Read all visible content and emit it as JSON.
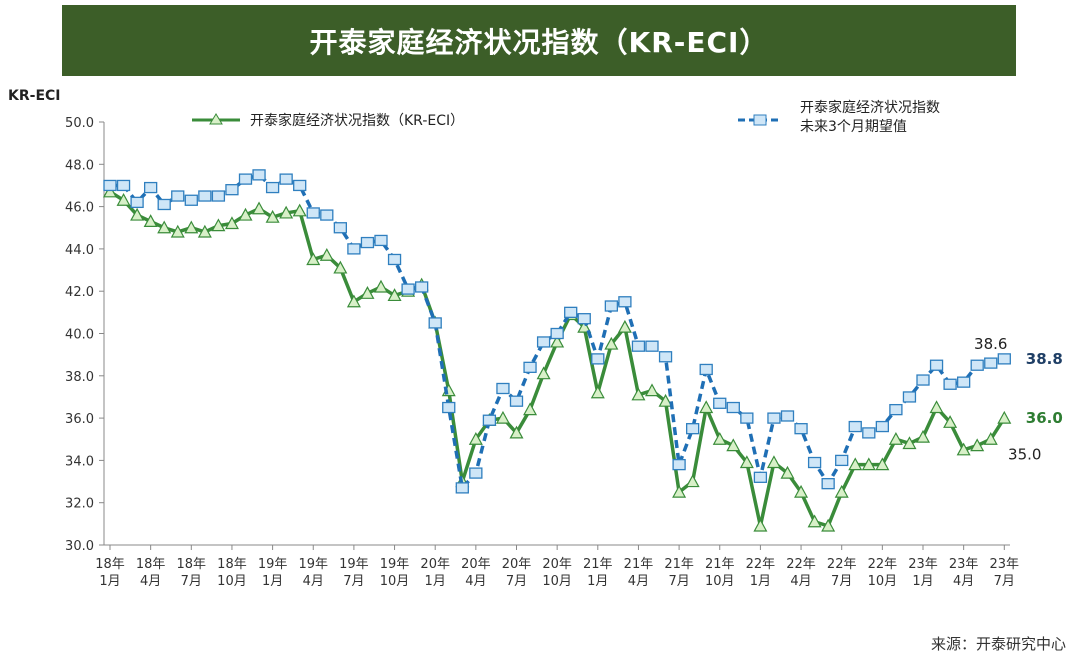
{
  "title": "开泰家庭经济状况指数（KR-ECI）",
  "source": "来源：开泰研究中心",
  "chart_data": {
    "type": "line",
    "title": "开泰家庭经济状况指数（KR-ECI）",
    "ylabel": "KR-ECI",
    "ylim": [
      30,
      50
    ],
    "yticks": [
      "30.0",
      "32.0",
      "34.0",
      "36.0",
      "38.0",
      "40.0",
      "42.0",
      "44.0",
      "46.0",
      "48.0",
      "50.0"
    ],
    "x_start": "2018-01",
    "x_end": "2023-07",
    "xtick_labels": [
      [
        "18年",
        "1月"
      ],
      [
        "18年",
        "4月"
      ],
      [
        "18年",
        "7月"
      ],
      [
        "18年",
        "10月"
      ],
      [
        "19年",
        "1月"
      ],
      [
        "19年",
        "4月"
      ],
      [
        "19年",
        "7月"
      ],
      [
        "19年",
        "10月"
      ],
      [
        "20年",
        "1月"
      ],
      [
        "20年",
        "4月"
      ],
      [
        "20年",
        "7月"
      ],
      [
        "20年",
        "10月"
      ],
      [
        "21年",
        "1月"
      ],
      [
        "21年",
        "4月"
      ],
      [
        "21年",
        "7月"
      ],
      [
        "21年",
        "10月"
      ],
      [
        "22年",
        "1月"
      ],
      [
        "22年",
        "4月"
      ],
      [
        "22年",
        "7月"
      ],
      [
        "22年",
        "10月"
      ],
      [
        "23年",
        "1月"
      ],
      [
        "23年",
        "4月"
      ],
      [
        "23年",
        "7月"
      ]
    ],
    "grid": false,
    "legend_position": "top",
    "series": [
      {
        "name": "开泰家庭经济状况指数（KR-ECI）",
        "color": "#3a8c3a",
        "marker": "triangle",
        "style": "solid",
        "values": [
          46.7,
          46.3,
          45.6,
          45.3,
          45.0,
          44.8,
          45.0,
          44.8,
          45.1,
          45.2,
          45.6,
          45.9,
          45.5,
          45.7,
          45.8,
          43.5,
          43.7,
          43.1,
          41.5,
          41.9,
          42.2,
          41.8,
          42.0,
          42.3,
          40.5,
          37.3,
          33.0,
          35.0,
          35.9,
          36.0,
          35.3,
          36.4,
          38.1,
          39.6,
          40.9,
          40.3,
          37.2,
          39.5,
          40.3,
          37.1,
          37.3,
          36.8,
          32.5,
          33.0,
          36.5,
          35.0,
          34.7,
          33.9,
          30.9,
          33.9,
          33.4,
          32.5,
          31.1,
          30.9,
          32.5,
          33.8,
          33.8,
          33.8,
          35.0,
          34.8,
          35.1,
          36.5,
          35.8,
          34.5,
          34.7,
          35.0,
          36.0
        ]
      },
      {
        "name": "开泰家庭经济状况指数\n未来3个月期望值",
        "name_lines": [
          "开泰家庭经济状况指数",
          "未来3个月期望值"
        ],
        "color": "#1f6fb5",
        "marker": "square",
        "style": "dashed",
        "values": [
          47.0,
          47.0,
          46.2,
          46.9,
          46.1,
          46.5,
          46.3,
          46.5,
          46.5,
          46.8,
          47.3,
          47.5,
          46.9,
          47.3,
          47.0,
          45.7,
          45.6,
          45.0,
          44.0,
          44.3,
          44.4,
          43.5,
          42.1,
          42.2,
          40.5,
          36.5,
          32.7,
          33.4,
          35.9,
          37.4,
          36.8,
          38.4,
          39.6,
          40.0,
          41.0,
          40.7,
          38.8,
          41.3,
          41.5,
          39.4,
          39.4,
          38.9,
          33.8,
          35.5,
          38.3,
          36.7,
          36.5,
          36.0,
          33.2,
          36.0,
          36.1,
          35.5,
          33.9,
          32.9,
          34.0,
          35.6,
          35.3,
          35.6,
          36.4,
          37.0,
          37.8,
          38.5,
          37.6,
          37.7,
          38.5,
          38.6,
          38.8
        ]
      }
    ],
    "annotations": [
      {
        "text": "38.6",
        "series": 1,
        "index": 65,
        "color": "#222222"
      },
      {
        "text": "38.8",
        "series": 1,
        "index": 66,
        "color": "#1f3f66"
      },
      {
        "text": "36.0",
        "series": 0,
        "index": 66,
        "color": "#2e7d32"
      },
      {
        "text": "35.0",
        "series": 0,
        "index": 65,
        "color": "#222222"
      }
    ]
  }
}
